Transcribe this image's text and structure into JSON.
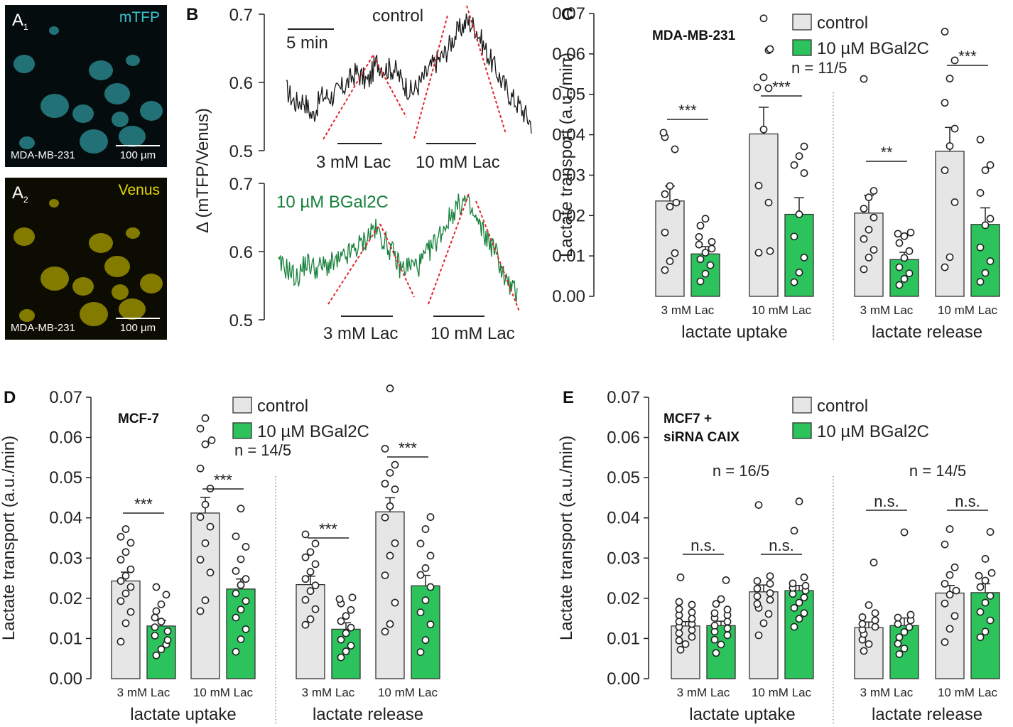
{
  "image_panels": [
    {
      "panel_label": "A",
      "panel_sub": "1",
      "channel": "mTFP",
      "channel_color": "#3bc4cf",
      "cell_line": "MDA-MB-231",
      "scale_bar": "100 µm"
    },
    {
      "panel_label": "A",
      "panel_sub": "2",
      "channel": "Venus",
      "channel_color": "#e5d600",
      "cell_line": "MDA-MB-231",
      "scale_bar": "100 µm"
    }
  ],
  "colors": {
    "control": "#e6e6e6",
    "bgal": "#2dc35c",
    "trace_control": "#1a1a1a",
    "trace_bgal": "#17803c",
    "fit": "#e0262a"
  },
  "chart_data": [
    {
      "panel": "B",
      "type": "line",
      "ylabel": "Δ (mTFP/Venus)",
      "time_scale_label": "5 min",
      "traces": [
        {
          "name": "control",
          "ytick_labels": [
            "0.7",
            "0.6",
            "0.5"
          ],
          "ylim": [
            0.5,
            0.7
          ],
          "points": [
            [
              0,
              0.59
            ],
            [
              3,
              0.57
            ],
            [
              6,
              0.575
            ],
            [
              9,
              0.55
            ],
            [
              12,
              0.58
            ],
            [
              16,
              0.58
            ],
            [
              20,
              0.595
            ],
            [
              24,
              0.615
            ],
            [
              28,
              0.6
            ],
            [
              31,
              0.63
            ],
            [
              34,
              0.62
            ],
            [
              37,
              0.62
            ],
            [
              40,
              0.6
            ],
            [
              43,
              0.585
            ],
            [
              46,
              0.6
            ],
            [
              50,
              0.625
            ],
            [
              54,
              0.64
            ],
            [
              58,
              0.67
            ],
            [
              62,
              0.69
            ],
            [
              65,
              0.68
            ],
            [
              68,
              0.65
            ],
            [
              71,
              0.625
            ],
            [
              74,
              0.6
            ],
            [
              77,
              0.58
            ],
            [
              80,
              0.565
            ],
            [
              84,
              0.54
            ]
          ],
          "stimuli": [
            "3 mM Lac",
            "10 mM Lac"
          ]
        },
        {
          "name": "10 µM BGal2C",
          "ytick_labels": [
            "0.7",
            "0.6",
            "0.5"
          ],
          "ylim": [
            0.5,
            0.7
          ],
          "points": [
            [
              0,
              0.58
            ],
            [
              3,
              0.575
            ],
            [
              6,
              0.56
            ],
            [
              9,
              0.585
            ],
            [
              12,
              0.575
            ],
            [
              16,
              0.58
            ],
            [
              20,
              0.585
            ],
            [
              24,
              0.6
            ],
            [
              28,
              0.615
            ],
            [
              31,
              0.635
            ],
            [
              34,
              0.62
            ],
            [
              37,
              0.6
            ],
            [
              40,
              0.575
            ],
            [
              43,
              0.58
            ],
            [
              46,
              0.58
            ],
            [
              50,
              0.605
            ],
            [
              54,
              0.635
            ],
            [
              58,
              0.665
            ],
            [
              61,
              0.675
            ],
            [
              64,
              0.65
            ],
            [
              68,
              0.62
            ],
            [
              71,
              0.6
            ],
            [
              74,
              0.56
            ],
            [
              78,
              0.535
            ]
          ],
          "stimuli": [
            "3 mM Lac",
            "10 mM Lac"
          ]
        }
      ]
    },
    {
      "panel": "C",
      "type": "bar",
      "cell_line": "MDA-MB-231",
      "n_text": [
        "n = 11/5"
      ],
      "ylabel": "Lactate transport (a.u./min)",
      "ylim": [
        0,
        0.07
      ],
      "ytick_labels": [
        "0.00",
        "0.01",
        "0.02",
        "0.03",
        "0.04",
        "0.05",
        "0.06",
        "0.07"
      ],
      "legend": [
        "control",
        "10 µM BGal2C"
      ],
      "categories": [
        "3 mM Lac",
        "10 mM Lac",
        "3 mM Lac",
        "10 mM Lac"
      ],
      "groups": [
        "lactate uptake",
        "lactate release"
      ],
      "series": [
        {
          "name": "control",
          "values": [
            0.0236,
            0.0402,
            0.0206,
            0.0359
          ],
          "sem": [
            0.0037,
            0.0066,
            0.0044,
            0.0059
          ],
          "points": [
            [
              0.0065,
              0.0087,
              0.0107,
              0.0158,
              0.0222,
              0.0232,
              0.0253,
              0.0273,
              0.0364,
              0.0394,
              0.0405
            ],
            [
              0.0112,
              0.0108,
              0.0232,
              0.0274,
              0.0413,
              0.0517,
              0.0515,
              0.0542,
              0.0609,
              0.0612,
              0.0688
            ],
            [
              0.0067,
              0.0096,
              0.0115,
              0.0142,
              0.0165,
              0.0195,
              0.0217,
              0.0245,
              0.0261,
              0.0538
            ],
            [
              0.0072,
              0.0097,
              0.0233,
              0.0312,
              0.0372,
              0.0415,
              0.0479,
              0.0539,
              0.0584,
              0.0655
            ]
          ]
        },
        {
          "name": "10 µM BGal2C",
          "values": [
            0.0105,
            0.0203,
            0.0091,
            0.0178
          ],
          "sem": [
            0.0018,
            0.0041,
            0.0018,
            0.0041
          ],
          "points": [
            [
              0.0037,
              0.0056,
              0.0077,
              0.0092,
              0.0108,
              0.0118,
              0.0128,
              0.0135,
              0.0147,
              0.0175,
              0.0192
            ],
            [
              0.0035,
              0.0059,
              0.0096,
              0.0148,
              0.0203,
              0.0305,
              0.0325,
              0.0347,
              0.0371
            ],
            [
              0.0028,
              0.0043,
              0.0057,
              0.0072,
              0.0095,
              0.0112,
              0.0132,
              0.0149,
              0.0155,
              0.0158
            ],
            [
              0.0036,
              0.0058,
              0.0087,
              0.0121,
              0.0176,
              0.0192,
              0.0256,
              0.0312,
              0.0325,
              0.0388
            ]
          ]
        }
      ],
      "significance": [
        "***",
        "***",
        "**",
        "***"
      ]
    },
    {
      "panel": "D",
      "type": "bar",
      "cell_line": "MCF-7",
      "n_text": [
        "n = 14/5"
      ],
      "ylabel": "Lactate transport (a.u./min)",
      "ylim": [
        0,
        0.07
      ],
      "ytick_labels": [
        "0.00",
        "0.01",
        "0.02",
        "0.03",
        "0.04",
        "0.05",
        "0.06",
        "0.07"
      ],
      "legend": [
        "control",
        "10 µM BGal2C"
      ],
      "categories": [
        "3 mM Lac",
        "10 mM Lac",
        "3 mM Lac",
        "10 mM Lac"
      ],
      "groups": [
        "lactate uptake",
        "lactate release"
      ],
      "series": [
        {
          "name": "control",
          "values": [
            0.0243,
            0.0412,
            0.0234,
            0.0415
          ],
          "sem": [
            0.0022,
            0.0039,
            0.0021,
            0.0035
          ],
          "points": [
            [
              0.0092,
              0.0138,
              0.0166,
              0.0193,
              0.0212,
              0.0228,
              0.0243,
              0.0256,
              0.0272,
              0.0296,
              0.0315,
              0.0338,
              0.0353,
              0.0372
            ],
            [
              0.0168,
              0.0195,
              0.0264,
              0.0296,
              0.0337,
              0.0378,
              0.0402,
              0.0433,
              0.0473,
              0.0523,
              0.0583,
              0.0593,
              0.0622,
              0.0648
            ],
            [
              0.0134,
              0.0148,
              0.0173,
              0.0196,
              0.0218,
              0.0232,
              0.0248,
              0.0266,
              0.0285,
              0.0302,
              0.0315,
              0.0336,
              0.0359
            ],
            [
              0.0117,
              0.0136,
              0.0189,
              0.0257,
              0.0306,
              0.0337,
              0.0401,
              0.0429,
              0.0471,
              0.0485,
              0.0512,
              0.0532,
              0.0572,
              0.0722
            ]
          ]
        },
        {
          "name": "10 µM BGal2C",
          "values": [
            0.0131,
            0.0223,
            0.0123,
            0.0231
          ],
          "sem": [
            0.0014,
            0.0025,
            0.0016,
            0.0026
          ],
          "points": [
            [
              0.0058,
              0.0073,
              0.0085,
              0.0096,
              0.0107,
              0.0118,
              0.0128,
              0.0142,
              0.0152,
              0.0168,
              0.0185,
              0.0209,
              0.0228
            ],
            [
              0.0067,
              0.0098,
              0.0123,
              0.0152,
              0.0172,
              0.0193,
              0.0212,
              0.0233,
              0.0248,
              0.0268,
              0.0297,
              0.0328,
              0.0354,
              0.0423
            ],
            [
              0.0053,
              0.0068,
              0.0082,
              0.0097,
              0.0113,
              0.0127,
              0.0143,
              0.0156,
              0.0171,
              0.0187,
              0.0198,
              0.0202
            ],
            [
              0.0066,
              0.0096,
              0.0135,
              0.0165,
              0.0195,
              0.0228,
              0.0258,
              0.0275,
              0.0306,
              0.0336,
              0.0372,
              0.0402
            ]
          ]
        }
      ],
      "significance": [
        "***",
        "***",
        "***",
        "***"
      ]
    },
    {
      "panel": "E",
      "type": "bar",
      "cell_line": "MCF7 + siRNA CAIX",
      "n_text": [
        "n = 16/5",
        "n = 14/5"
      ],
      "ylabel": "Lactate transport (a.u./min)",
      "ylim": [
        0,
        0.07
      ],
      "ytick_labels": [
        "0.00",
        "0.01",
        "0.02",
        "0.03",
        "0.04",
        "0.05",
        "0.06",
        "0.07"
      ],
      "legend": [
        "control",
        "10 µM BGal2C"
      ],
      "categories": [
        "3 mM Lac",
        "10 mM Lac",
        "3 mM Lac",
        "10 mM Lac"
      ],
      "groups": [
        "lactate uptake",
        "lactate release"
      ],
      "series": [
        {
          "name": "control",
          "values": [
            0.0131,
            0.0216,
            0.0127,
            0.0213
          ],
          "sem": [
            0.0011,
            0.0017,
            0.0014,
            0.0019
          ],
          "points": [
            [
              0.0072,
              0.0086,
              0.0095,
              0.0104,
              0.0113,
              0.0121,
              0.0129,
              0.0136,
              0.0142,
              0.0149,
              0.0158,
              0.0165,
              0.0173,
              0.0184,
              0.0191,
              0.0252
            ],
            [
              0.0108,
              0.0138,
              0.0161,
              0.0176,
              0.0186,
              0.0196,
              0.0205,
              0.0213,
              0.0224,
              0.0236,
              0.0243,
              0.0255,
              0.0432
            ],
            [
              0.0069,
              0.0086,
              0.0097,
              0.0111,
              0.0122,
              0.0129,
              0.0136,
              0.0145,
              0.0153,
              0.0163,
              0.0183,
              0.0289
            ],
            [
              0.0091,
              0.0124,
              0.0156,
              0.0187,
              0.0209,
              0.0219,
              0.0236,
              0.0258,
              0.0277,
              0.0334,
              0.0372
            ]
          ]
        },
        {
          "name": "10 µM BGal2C",
          "values": [
            0.0132,
            0.0219,
            0.0132,
            0.0214
          ],
          "sem": [
            0.0011,
            0.0013,
            0.0019,
            0.0022
          ],
          "points": [
            [
              0.0064,
              0.0085,
              0.0097,
              0.0108,
              0.0117,
              0.0125,
              0.0132,
              0.0142,
              0.0151,
              0.0158,
              0.0163,
              0.0172,
              0.0186,
              0.0198,
              0.0245
            ],
            [
              0.0129,
              0.0149,
              0.0163,
              0.0176,
              0.0189,
              0.0202,
              0.0211,
              0.0219,
              0.0226,
              0.0231,
              0.0237,
              0.0252,
              0.0368,
              0.0441
            ],
            [
              0.0061,
              0.0075,
              0.0087,
              0.0103,
              0.0116,
              0.0128,
              0.0136,
              0.0145,
              0.0152,
              0.0159,
              0.0364
            ],
            [
              0.0103,
              0.0117,
              0.0145,
              0.0166,
              0.0189,
              0.0206,
              0.0228,
              0.0244,
              0.0256,
              0.0263,
              0.0298,
              0.0365
            ]
          ]
        }
      ],
      "significance": [
        "n.s.",
        "n.s.",
        "n.s.",
        "n.s."
      ]
    }
  ]
}
